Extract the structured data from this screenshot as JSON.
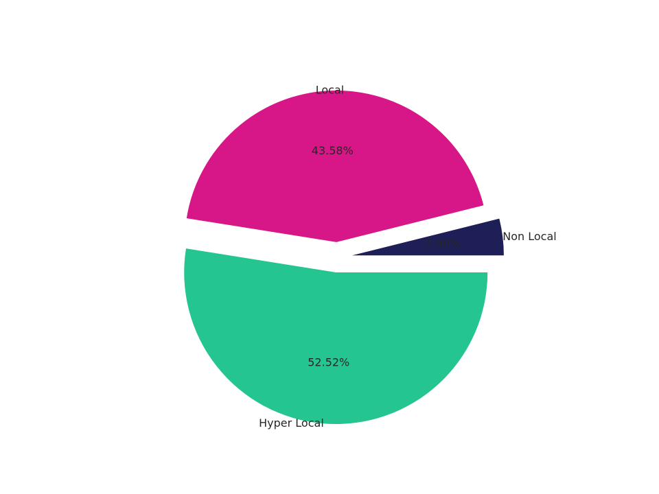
{
  "chart_data": {
    "type": "pie",
    "title": "",
    "slices": [
      {
        "label": "Non Local",
        "value": 3.9,
        "pct_label": "3.90%",
        "color": "#1f1f57"
      },
      {
        "label": "Local",
        "value": 43.58,
        "pct_label": "43.58%",
        "color": "#d71787"
      },
      {
        "label": "Hyper Local",
        "value": 52.52,
        "pct_label": "52.52%",
        "color": "#25c592"
      }
    ],
    "start_angle_deg": 0,
    "direction": "counterclockwise",
    "exploded": true,
    "background": "#ffffff"
  }
}
